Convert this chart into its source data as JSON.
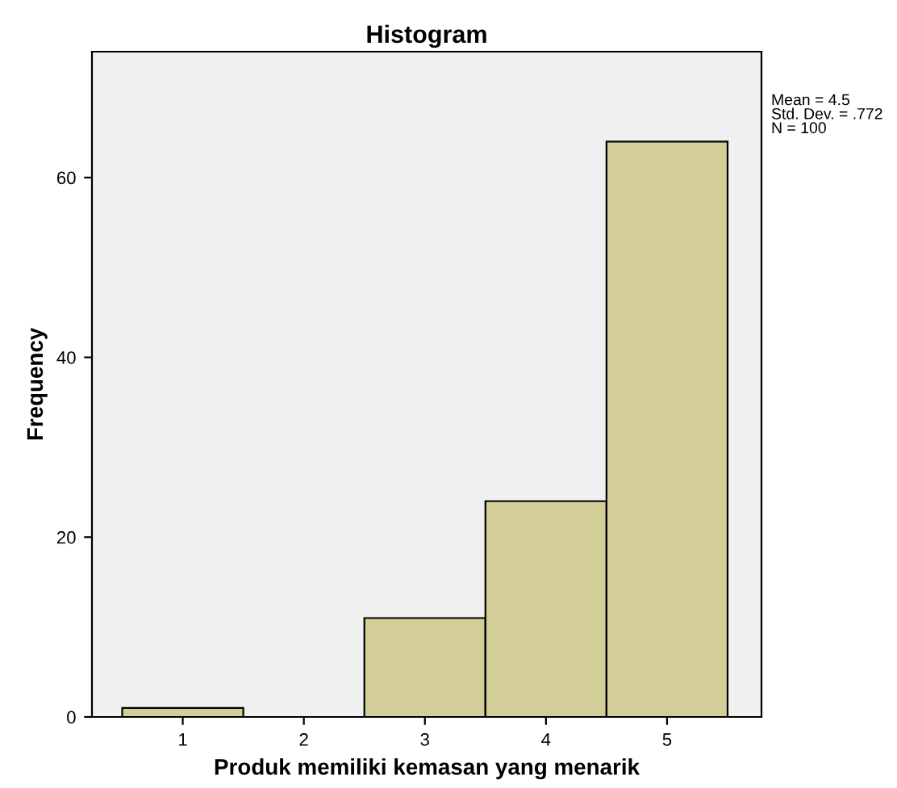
{
  "chart_data": {
    "type": "histogram",
    "title": "Histogram",
    "xlabel": "Produk memiliki kemasan yang menarik",
    "ylabel": "Frequency",
    "bins": [
      0.5,
      1.5,
      2.5,
      3.5,
      4.5,
      5.5
    ],
    "values": [
      1,
      0,
      11,
      24,
      64
    ],
    "color": "#d3ce97",
    "xlim": [
      0.25,
      5.78
    ],
    "xticks": [
      1,
      2,
      3,
      4,
      5
    ],
    "ylim": [
      0,
      74
    ],
    "yticks": [
      0,
      20,
      40,
      60
    ],
    "grid": false,
    "annotations": [
      "Mean = 4.5\nStd. Dev. = .772\nN = 100"
    ]
  }
}
